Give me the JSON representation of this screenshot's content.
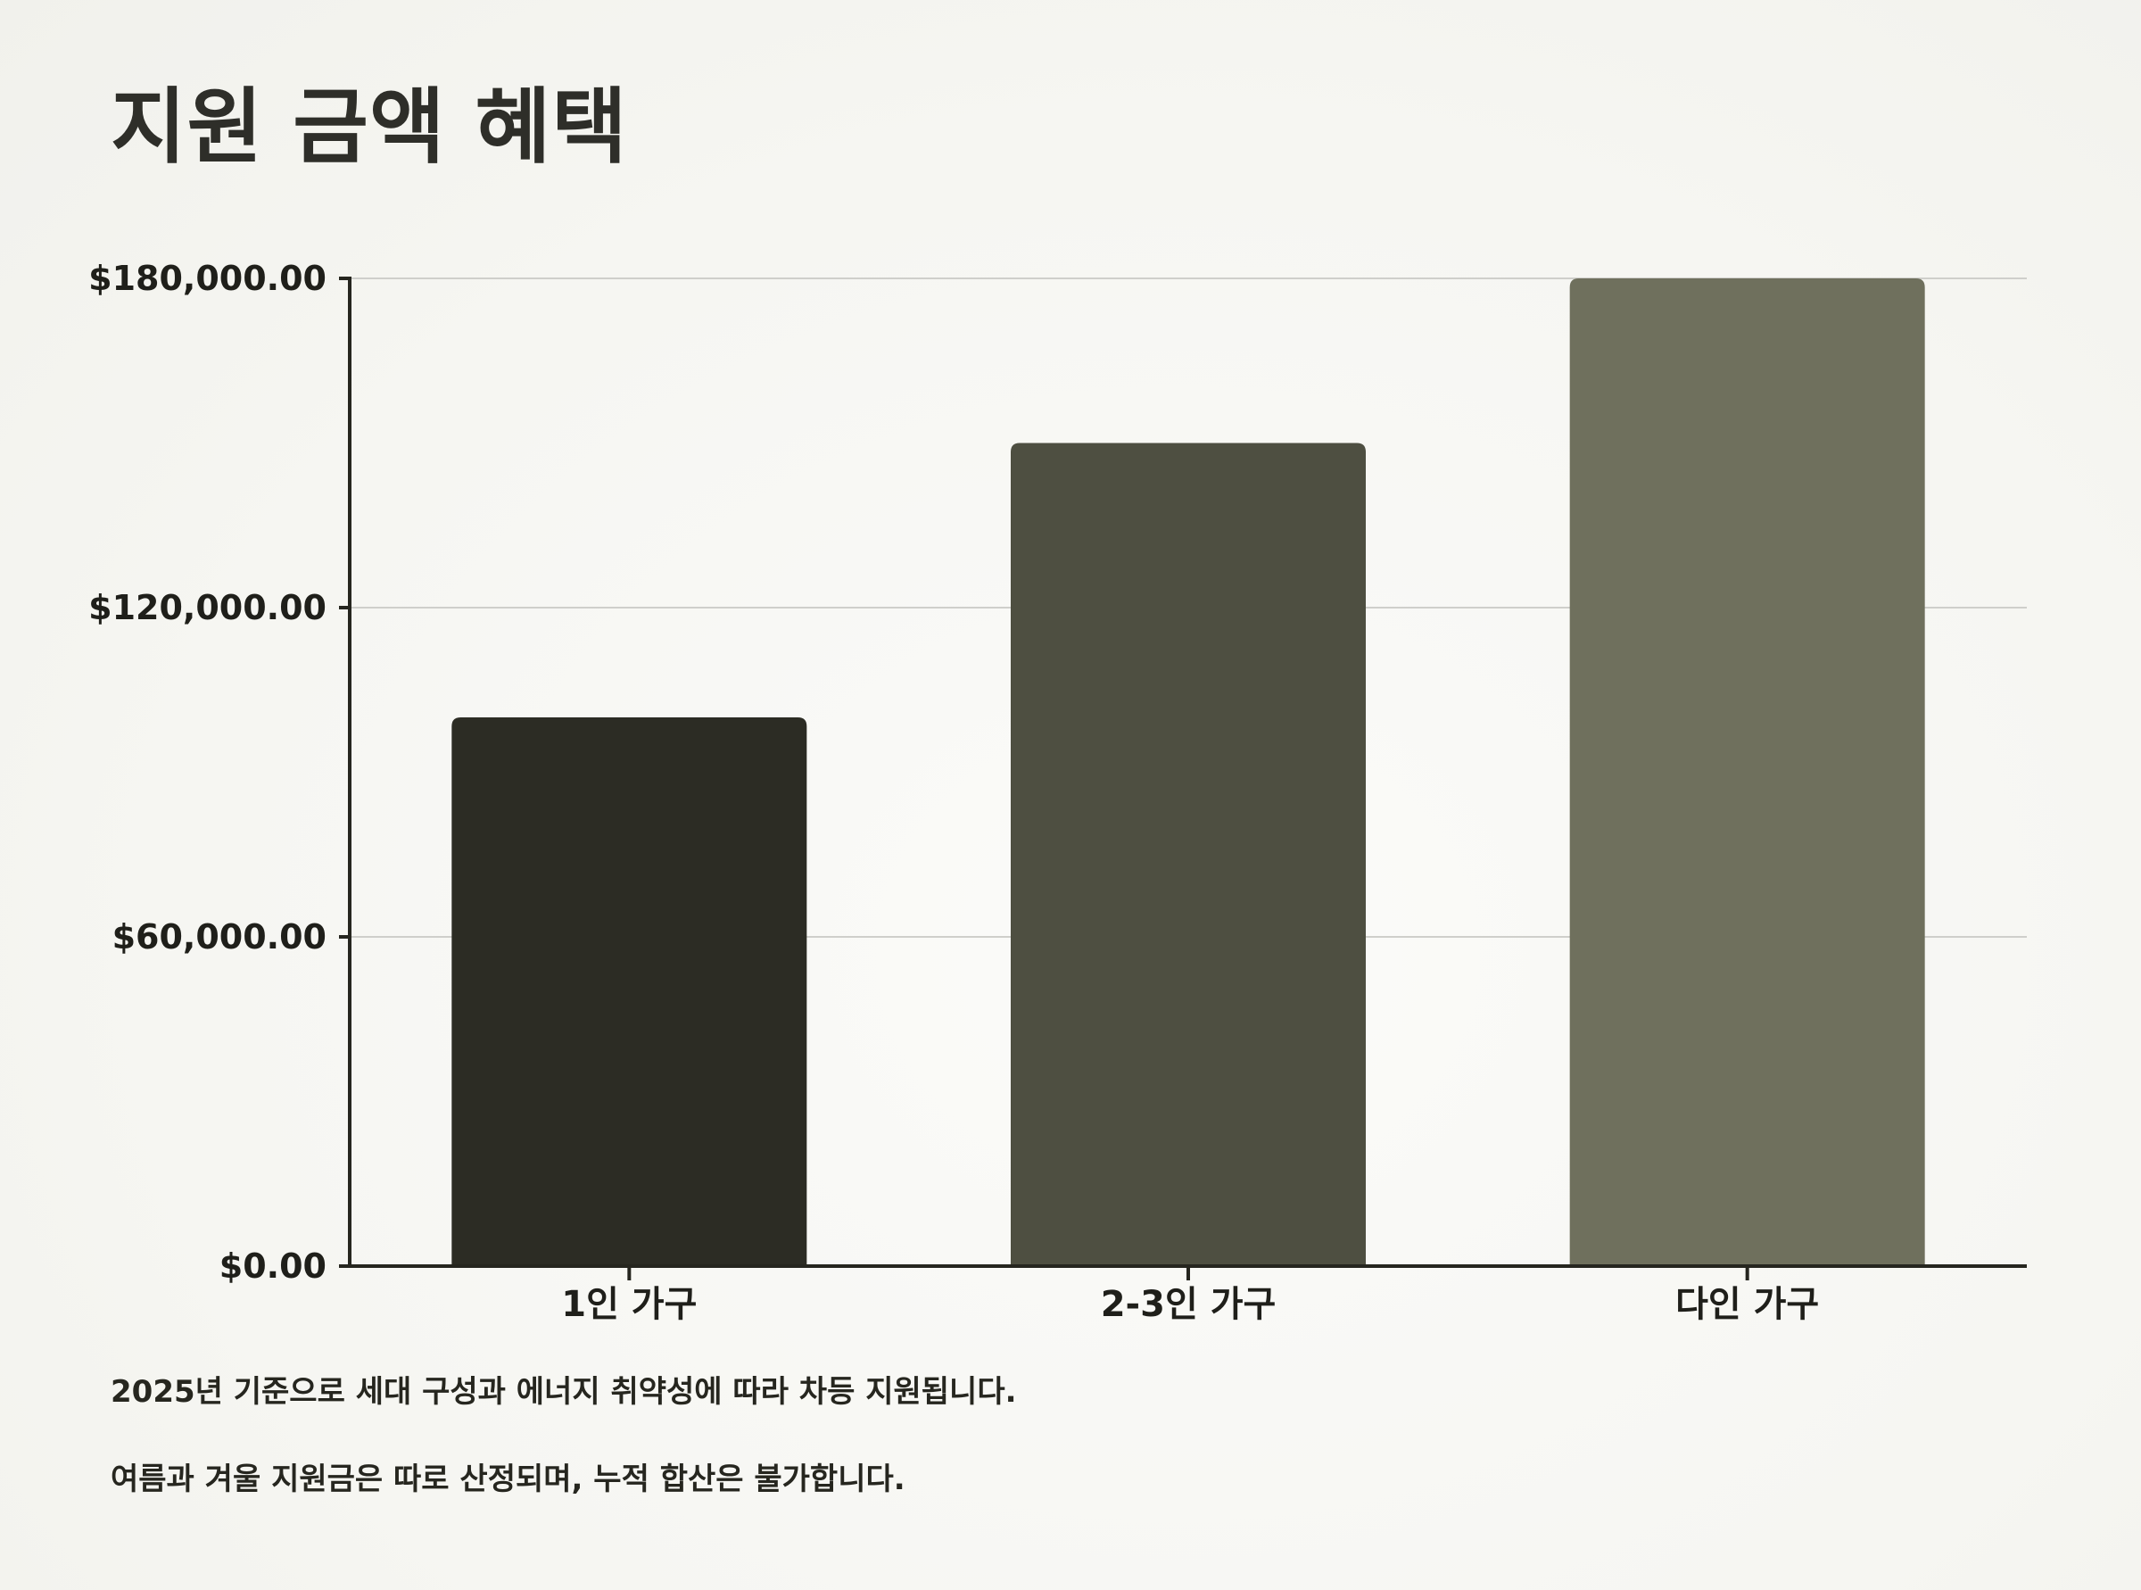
{
  "title": "지원 금액 혜택",
  "chart_data": {
    "type": "bar",
    "categories": [
      "1인 가구",
      "2-3인 가구",
      "다인 가구"
    ],
    "values": [
      100000,
      150000,
      180000
    ],
    "ylim": [
      0,
      180000
    ],
    "yticks": [
      0,
      60000,
      120000,
      180000
    ],
    "ytick_labels": [
      "$0.00",
      "$60,000.00",
      "$120,000.00",
      "$180,000.00"
    ],
    "grid": true,
    "legend": "none",
    "colors": [
      "#2c2c24",
      "#4e4f41",
      "#6f705d"
    ],
    "xlabel": "",
    "ylabel": ""
  },
  "notes": [
    "2025년 기준으로 세대 구성과 에너지 취약성에 따라 차등 지원됩니다.",
    "여름과 겨울 지원금은 따로 산정되며, 누적 합산은 불가합니다."
  ]
}
